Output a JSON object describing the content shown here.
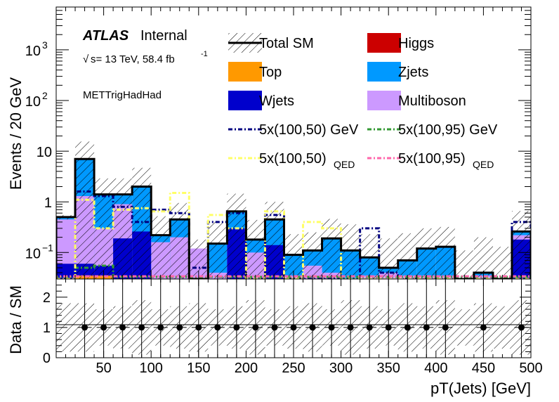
{
  "chart_data": {
    "type": "bar",
    "title": "",
    "experiment": "ATLAS",
    "status": "Internal",
    "energy_label": "s= 13 TeV, 58.4 fb",
    "energy_sup": "-1",
    "sqrt_symbol": "√",
    "region": "METTrigHadHad",
    "xlabel": "pT(Jets) [GeV]",
    "ylabel": "Events / 20 GeV",
    "ratio_ylabel": "Data / SM",
    "xlim": [
      0,
      500
    ],
    "ylim": [
      0.03,
      7000
    ],
    "yscale": "log",
    "ratio_ylim": [
      0,
      2.6
    ],
    "x_ticks": [
      "50",
      "100",
      "150",
      "200",
      "250",
      "300",
      "350",
      "400",
      "450",
      "500"
    ],
    "y_ticks": [
      {
        "v": 0.1,
        "base": "10",
        "exp": "−1"
      },
      {
        "v": 1,
        "base": "1",
        "exp": ""
      },
      {
        "v": 10,
        "base": "10",
        "exp": ""
      },
      {
        "v": 100,
        "base": "10",
        "exp": "2"
      },
      {
        "v": 1000,
        "base": "10",
        "exp": "3"
      }
    ],
    "ratio_ticks": [
      "0",
      "1",
      "2"
    ],
    "bin_edges": [
      0,
      20,
      40,
      60,
      80,
      100,
      120,
      140,
      160,
      180,
      200,
      220,
      240,
      260,
      280,
      300,
      320,
      340,
      360,
      380,
      400,
      420,
      440,
      460,
      480,
      500
    ],
    "total_sm": [
      0.5,
      7,
      1.4,
      1.4,
      2.0,
      0.22,
      0.45,
      0.03,
      0.15,
      0.65,
      0.18,
      0.45,
      0.09,
      0.11,
      0.19,
      0.11,
      0.08,
      0.05,
      0.07,
      0.12,
      0.13,
      0.03,
      0.04,
      0.03,
      0.26
    ],
    "stacks": [
      {
        "name": "Top",
        "color": "#ff9900",
        "values": [
          0,
          0.035,
          0.035,
          0,
          0,
          0,
          0,
          0,
          0,
          0,
          0,
          0,
          0,
          0,
          0,
          0,
          0,
          0,
          0,
          0,
          0,
          0,
          0,
          0,
          0
        ]
      },
      {
        "name": "Wjets",
        "color": "#0000cc",
        "values": [
          0.06,
          0.06,
          0.055,
          0.19,
          0.26,
          0,
          0,
          0,
          0,
          0.3,
          0,
          0.14,
          0,
          0,
          0,
          0,
          0,
          0,
          0,
          0,
          0,
          0,
          0,
          0,
          0.18
        ]
      },
      {
        "name": "Multiboson",
        "color": "#cc99ff",
        "values": [
          0.45,
          1.3,
          0.3,
          0.9,
          0.07,
          0.16,
          0.2,
          0.12,
          0.04,
          0.18,
          0.1,
          0.1,
          0.035,
          0.055,
          0.04,
          0.03,
          0.035,
          0.04,
          0.035,
          0.035,
          0.035,
          0,
          0.035,
          0,
          0.22
        ]
      },
      {
        "name": "Zjets",
        "color": "#0099ff",
        "values": [
          0.5,
          7,
          1.4,
          1.4,
          2.0,
          0.22,
          0.45,
          0.03,
          0.15,
          0.65,
          0.18,
          0.45,
          0.09,
          0.11,
          0.19,
          0.11,
          0.08,
          0.05,
          0.07,
          0.12,
          0.13,
          0.03,
          0.04,
          0.03,
          0.26
        ]
      }
    ],
    "higgs": {
      "name": "Higgs",
      "color": "#cc0000"
    },
    "uncertainty": [
      0.05,
      8.5,
      1.5,
      1.5,
      2.7,
      0.3,
      0.5,
      0.15,
      0.25,
      0.8,
      0.26,
      0.55,
      0.14,
      0.14,
      0.27,
      0.25,
      0.15,
      0.14,
      0.17,
      0.18,
      0.19,
      0.08,
      0.16,
      0.1,
      0.4
    ],
    "signals": [
      {
        "name": "5x(100,50) GeV",
        "color": "#000080",
        "dash": "6,3,2,3",
        "values": [
          0.03,
          1.6,
          1.3,
          0.8,
          0.4,
          0.7,
          0.6,
          0.05,
          0.4,
          0.6,
          0.03,
          0.55,
          0.03,
          0.03,
          0.03,
          0.03,
          0.3,
          0.04,
          0.03,
          0.03,
          0.03,
          0.03,
          0.03,
          0.03,
          0.4
        ]
      },
      {
        "name": "5x(100,95) GeV",
        "color": "#339933",
        "dash": "6,3,2,3",
        "values": [
          0.033,
          0.05,
          0.055,
          0.033,
          0.033,
          0.033,
          0.033,
          0.033,
          0.033,
          0.033,
          0.033,
          0.033,
          0.033,
          0.033,
          0.033,
          0.033,
          0.033,
          0.033,
          0.033,
          0.033,
          0.033,
          0.033,
          0.033,
          0.033,
          0.033
        ]
      },
      {
        "name": "5x(100,50)",
        "sub": "QED",
        "color": "#ffff66",
        "dash": "6,3,2,3",
        "values": [
          0.03,
          1.1,
          0.3,
          0.7,
          0.75,
          0.65,
          1.5,
          0.03,
          0.55,
          0.3,
          0.03,
          0.65,
          0.03,
          0.4,
          0.3,
          0.03,
          0.03,
          0.03,
          0.03,
          0.03,
          0.03,
          0.03,
          0.03,
          0.03,
          0.03
        ]
      },
      {
        "name": "5x(100,95)",
        "sub": "QED",
        "color": "#ff66aa",
        "dash": "6,3,2,3",
        "values": [
          0.034,
          0.034,
          0.034,
          0.034,
          0.034,
          0.034,
          0.034,
          0.034,
          0.034,
          0.034,
          0.034,
          0.034,
          0.034,
          0.034,
          0.034,
          0.034,
          0.034,
          0.034,
          0.034,
          0.034,
          0.034,
          0.034,
          0.034,
          0.034,
          0.034
        ]
      }
    ],
    "ratio_points": [
      {
        "x": 30,
        "y": 1
      },
      {
        "x": 50,
        "y": 1
      },
      {
        "x": 70,
        "y": 1
      },
      {
        "x": 90,
        "y": 1
      },
      {
        "x": 110,
        "y": 1
      },
      {
        "x": 130,
        "y": 1
      },
      {
        "x": 150,
        "y": 1
      },
      {
        "x": 170,
        "y": 1
      },
      {
        "x": 190,
        "y": 1
      },
      {
        "x": 210,
        "y": 1
      },
      {
        "x": 230,
        "y": 1
      },
      {
        "x": 250,
        "y": 1
      },
      {
        "x": 270,
        "y": 1
      },
      {
        "x": 290,
        "y": 1
      },
      {
        "x": 310,
        "y": 1
      },
      {
        "x": 330,
        "y": 1
      },
      {
        "x": 350,
        "y": 1
      },
      {
        "x": 370,
        "y": 1
      },
      {
        "x": 390,
        "y": 1
      },
      {
        "x": 410,
        "y": 1
      },
      {
        "x": 450,
        "y": 1
      },
      {
        "x": 490,
        "y": 1
      }
    ],
    "ratio_band": [
      0.8,
      0.8,
      0.6,
      0.7,
      0.9,
      0.6,
      0.7,
      0.8,
      0.6,
      0.7,
      0.9,
      0.6,
      0.7,
      0.8,
      0.6,
      0.9,
      0.7,
      0.6,
      0.8,
      0.7,
      0.9,
      0.6,
      0.8,
      0.7,
      0.9
    ],
    "legend_total": "Total SM",
    "legend_placement": "top-right"
  }
}
